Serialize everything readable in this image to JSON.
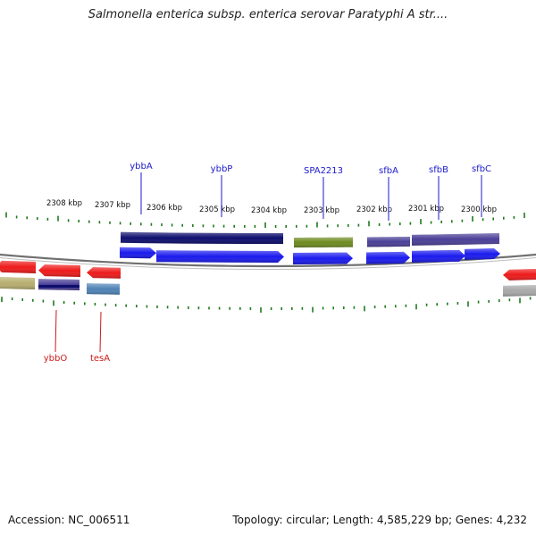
{
  "title": "Salmonella enterica subsp. enterica serovar Paratyphi A str....",
  "footer": {
    "accession": "Accession: NC_006511",
    "summary": "Topology: circular; Length: 4,585,229 bp; Genes: 4,232"
  },
  "colors": {
    "forward_gene_label": "#1a1acc",
    "reverse_gene_label": "#cc1a1a",
    "tick": "#1e7a1e",
    "backbone": "#707070",
    "cds_blue": "#1a1aee",
    "cds_red": "#ee1a1a",
    "cog_navy": "#0d0d6e",
    "cog_olive": "#6e8a20",
    "cog_slate": "#4a3f96",
    "cog_khaki": "#b6ad6e",
    "cog_steel": "#4f83b6",
    "cog_gray": "#a8a8a8"
  },
  "diagram": {
    "kbp_labels": [
      "2308 kbp",
      "2307 kbp",
      "2306 kbp",
      "2305 kbp",
      "2304 kbp",
      "2303 kbp",
      "2302 kbp",
      "2301 kbp",
      "2300 kbp"
    ],
    "forward_genes": [
      "ybbA",
      "ybbP",
      "SPA2213",
      "sfbA",
      "sfbB",
      "sfbC"
    ],
    "reverse_genes": [
      "ybbO",
      "tesA"
    ]
  }
}
